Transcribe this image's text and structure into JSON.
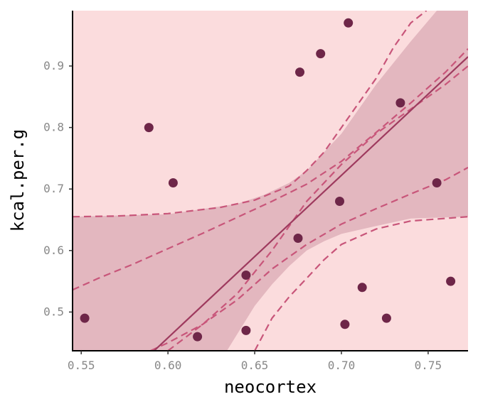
{
  "chart_data": {
    "type": "scatter",
    "xlabel": "neocortex",
    "ylabel": "kcal.per.g",
    "xlim": [
      0.545,
      0.773
    ],
    "ylim": [
      0.437,
      0.99
    ],
    "x_ticks": [
      "0.55",
      "0.60",
      "0.65",
      "0.70",
      "0.75"
    ],
    "y_ticks": [
      "0.5",
      "0.6",
      "0.7",
      "0.8",
      "0.9"
    ],
    "grid": false,
    "points": {
      "x": [
        0.552,
        0.589,
        0.603,
        0.617,
        0.645,
        0.645,
        0.675,
        0.676,
        0.688,
        0.699,
        0.702,
        0.704,
        0.712,
        0.726,
        0.734,
        0.755,
        0.763
      ],
      "y": [
        0.49,
        0.8,
        0.71,
        0.46,
        0.56,
        0.47,
        0.62,
        0.89,
        0.92,
        0.68,
        0.48,
        0.97,
        0.54,
        0.49,
        0.84,
        0.71,
        0.55
      ]
    },
    "mean_line": {
      "x": [
        0.592,
        0.773
      ],
      "y": [
        0.437,
        0.915
      ]
    },
    "ci_lower": {
      "x": [
        0.634,
        0.65,
        0.66,
        0.67,
        0.68,
        0.69,
        0.7,
        0.72,
        0.74,
        0.773
      ],
      "y": [
        0.437,
        0.51,
        0.545,
        0.575,
        0.6,
        0.615,
        0.627,
        0.64,
        0.652,
        0.655
      ]
    },
    "ci_upper": {
      "x": [
        0.545,
        0.6,
        0.64,
        0.655,
        0.67,
        0.68,
        0.69,
        0.7,
        0.72,
        0.74,
        0.755,
        0.773
      ],
      "y": [
        0.655,
        0.659,
        0.676,
        0.69,
        0.71,
        0.73,
        0.76,
        0.79,
        0.87,
        0.94,
        0.99,
        0.99
      ]
    },
    "pi_upper": {
      "x": [
        0.545,
        0.57,
        0.6,
        0.63,
        0.65,
        0.67,
        0.68,
        0.69,
        0.7,
        0.71,
        0.72,
        0.73,
        0.74,
        0.749
      ],
      "y": [
        0.655,
        0.656,
        0.66,
        0.67,
        0.682,
        0.705,
        0.73,
        0.76,
        0.8,
        0.84,
        0.88,
        0.93,
        0.97,
        0.99
      ]
    },
    "pi_lower": {
      "x": [
        0.65,
        0.66,
        0.67,
        0.68,
        0.69,
        0.7,
        0.72,
        0.74,
        0.773
      ],
      "y": [
        0.437,
        0.49,
        0.525,
        0.555,
        0.585,
        0.61,
        0.635,
        0.648,
        0.655
      ]
    },
    "dashed_upper": {
      "x": [
        0.545,
        0.56,
        0.58,
        0.6,
        0.62,
        0.64,
        0.66,
        0.68,
        0.7,
        0.72,
        0.74,
        0.76,
        0.773
      ],
      "y": [
        0.536,
        0.555,
        0.578,
        0.603,
        0.628,
        0.654,
        0.68,
        0.708,
        0.745,
        0.792,
        0.84,
        0.89,
        0.928
      ]
    },
    "dashed_mid": {
      "x": [
        0.6,
        0.62,
        0.64,
        0.66,
        0.68,
        0.7,
        0.72,
        0.74,
        0.76,
        0.773
      ],
      "y": [
        0.437,
        0.48,
        0.53,
        0.6,
        0.68,
        0.74,
        0.79,
        0.83,
        0.87,
        0.9
      ]
    },
    "dashed_lower": {
      "x": [
        0.59,
        0.6,
        0.62,
        0.64,
        0.66,
        0.68,
        0.7,
        0.72,
        0.74,
        0.76,
        0.773
      ],
      "y": [
        0.437,
        0.45,
        0.48,
        0.52,
        0.57,
        0.61,
        0.643,
        0.668,
        0.692,
        0.715,
        0.735
      ]
    },
    "colors": {
      "point": "#6e2648",
      "line": "#9e3a5e",
      "dashed": "#c8567a",
      "ci_band": "#e3b7bf",
      "pi_band": "#fbdcdd",
      "axis": "#000000"
    }
  }
}
